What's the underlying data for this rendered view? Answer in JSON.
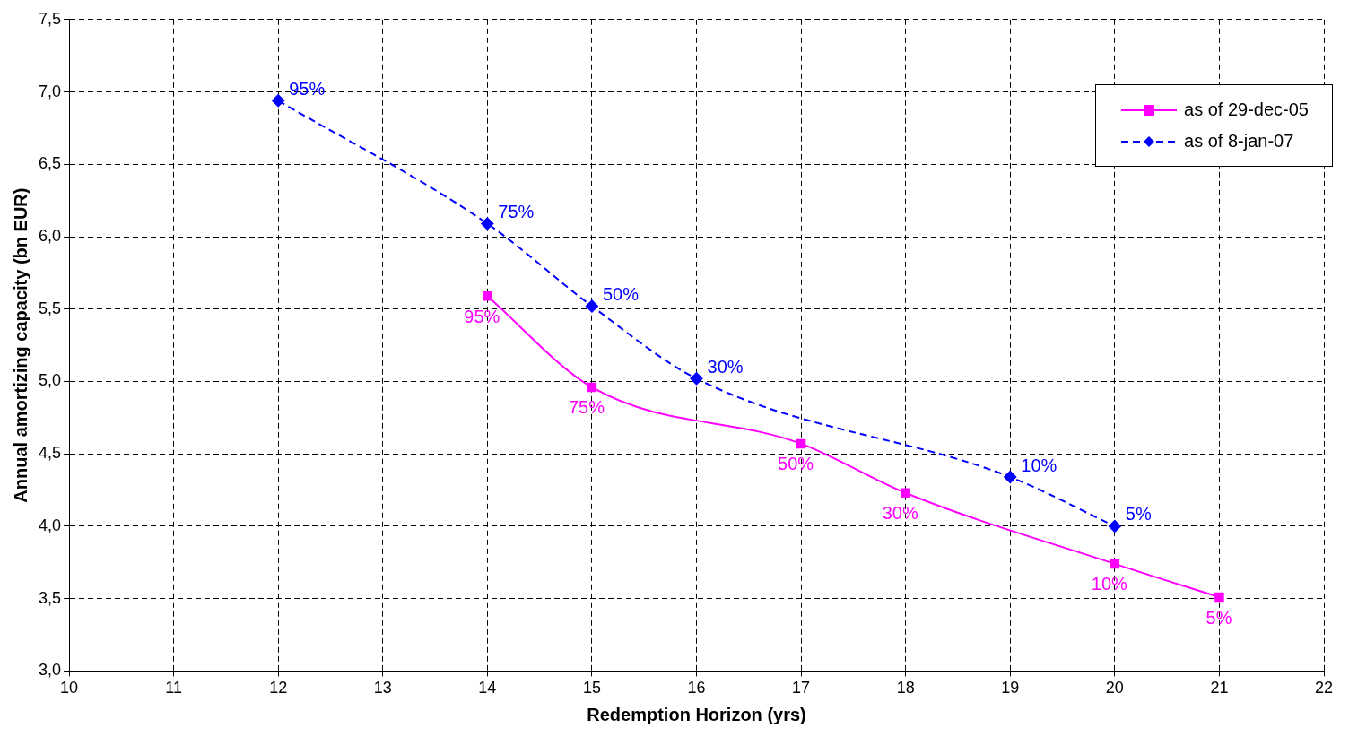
{
  "chart_data": {
    "type": "line",
    "xlabel": "Redemption Horizon (yrs)",
    "ylabel": "Annual amortizing capacity (bn EUR)",
    "xlim": [
      10,
      22
    ],
    "xticks": [
      10,
      11,
      12,
      13,
      14,
      15,
      16,
      17,
      18,
      19,
      20,
      21,
      22
    ],
    "ylim": [
      3,
      7.5
    ],
    "yticks": [
      {
        "value": 3,
        "label": "3,0"
      },
      {
        "value": 3.5,
        "label": "3,5"
      },
      {
        "value": 4,
        "label": "4,0"
      },
      {
        "value": 4.5,
        "label": "4,5"
      },
      {
        "value": 5,
        "label": "5,0"
      },
      {
        "value": 5.5,
        "label": "5,5"
      },
      {
        "value": 6,
        "label": "6,0"
      },
      {
        "value": 6.5,
        "label": "6,5"
      },
      {
        "value": 7,
        "label": "7,0"
      },
      {
        "value": 7.5,
        "label": "7,5"
      }
    ],
    "grid": true,
    "legend": "top right",
    "series": [
      {
        "name": "as of 29-dec-05",
        "color": "#ff00ff",
        "marker": "square",
        "line_style": "solid",
        "x": [
          14,
          15,
          17,
          18,
          20,
          21
        ],
        "values": [
          5.59,
          4.96,
          4.57,
          4.23,
          3.74,
          3.51
        ]
      },
      {
        "name": "as of 8-jan-07",
        "color": "#0000ff",
        "marker": "diamond",
        "line_style": "dashed",
        "x": [
          12,
          14,
          15,
          16,
          19,
          20
        ],
        "values": [
          6.94,
          6.09,
          5.52,
          5.02,
          4.34,
          4.0
        ]
      }
    ],
    "annotations": [
      {
        "text": "95%",
        "x": 14,
        "y": 5.59
      },
      {
        "text": "75%",
        "x": 15,
        "y": 4.96
      },
      {
        "text": "50%",
        "x": 17,
        "y": 4.57
      },
      {
        "text": "30%",
        "x": 18,
        "y": 4.23
      },
      {
        "text": "10%",
        "x": 20,
        "y": 3.74
      },
      {
        "text": "5%",
        "x": 21,
        "y": 3.51
      },
      {
        "text": "95%",
        "x": 12,
        "y": 6.94
      },
      {
        "text": "75%",
        "x": 14,
        "y": 6.09
      },
      {
        "text": "50%",
        "x": 15,
        "y": 5.52
      },
      {
        "text": "30%",
        "x": 16,
        "y": 5.02
      },
      {
        "text": "10%",
        "x": 19,
        "y": 4.34
      },
      {
        "text": "5%",
        "x": 20,
        "y": 4.0
      }
    ]
  }
}
